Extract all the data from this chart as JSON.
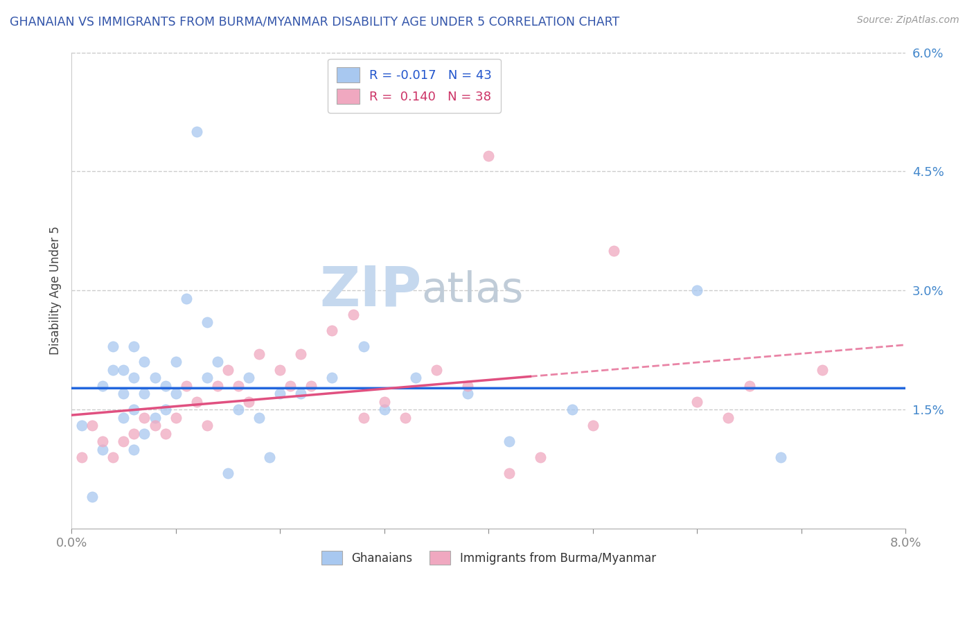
{
  "title": "GHANAIAN VS IMMIGRANTS FROM BURMA/MYANMAR DISABILITY AGE UNDER 5 CORRELATION CHART",
  "source_text": "Source: ZipAtlas.com",
  "ylabel": "Disability Age Under 5",
  "xlim": [
    0.0,
    0.08
  ],
  "ylim": [
    0.0,
    0.06
  ],
  "yticks": [
    0.015,
    0.03,
    0.045,
    0.06
  ],
  "ytick_labels": [
    "1.5%",
    "3.0%",
    "4.5%",
    "6.0%"
  ],
  "xticks": [
    0.0,
    0.01,
    0.02,
    0.03,
    0.04,
    0.05,
    0.06,
    0.07,
    0.08
  ],
  "xtick_labels": [
    "0.0%",
    "",
    "",
    "",
    "",
    "",
    "",
    "",
    "8.0%"
  ],
  "ghanaian_R": "-0.017",
  "ghanaian_N": "43",
  "burma_R": "0.140",
  "burma_N": "38",
  "ghanaian_color": "#a8c8f0",
  "burma_color": "#f0a8c0",
  "ghanaian_line_color": "#2266dd",
  "burma_line_color": "#e05080",
  "title_color": "#3355aa",
  "source_color": "#999999",
  "watermark_color_zip": "#c8d8ee",
  "watermark_color_atlas": "#c0cce0",
  "background_color": "#ffffff",
  "grid_color": "#cccccc",
  "ghanaian_x": [
    0.001,
    0.002,
    0.003,
    0.003,
    0.004,
    0.004,
    0.005,
    0.005,
    0.005,
    0.006,
    0.006,
    0.006,
    0.006,
    0.007,
    0.007,
    0.007,
    0.008,
    0.008,
    0.009,
    0.009,
    0.01,
    0.01,
    0.011,
    0.012,
    0.013,
    0.013,
    0.014,
    0.015,
    0.016,
    0.017,
    0.018,
    0.019,
    0.02,
    0.022,
    0.025,
    0.028,
    0.03,
    0.033,
    0.038,
    0.042,
    0.048,
    0.06,
    0.068
  ],
  "ghanaian_y": [
    0.013,
    0.004,
    0.01,
    0.018,
    0.02,
    0.023,
    0.014,
    0.017,
    0.02,
    0.01,
    0.015,
    0.019,
    0.023,
    0.012,
    0.017,
    0.021,
    0.014,
    0.019,
    0.015,
    0.018,
    0.017,
    0.021,
    0.029,
    0.05,
    0.026,
    0.019,
    0.021,
    0.007,
    0.015,
    0.019,
    0.014,
    0.009,
    0.017,
    0.017,
    0.019,
    0.023,
    0.015,
    0.019,
    0.017,
    0.011,
    0.015,
    0.03,
    0.009
  ],
  "burma_x": [
    0.001,
    0.002,
    0.003,
    0.004,
    0.005,
    0.006,
    0.007,
    0.008,
    0.009,
    0.01,
    0.011,
    0.012,
    0.013,
    0.014,
    0.015,
    0.016,
    0.017,
    0.018,
    0.02,
    0.021,
    0.022,
    0.023,
    0.025,
    0.027,
    0.028,
    0.03,
    0.032,
    0.035,
    0.038,
    0.04,
    0.042,
    0.045,
    0.05,
    0.052,
    0.06,
    0.063,
    0.065,
    0.072
  ],
  "burma_y": [
    0.009,
    0.013,
    0.011,
    0.009,
    0.011,
    0.012,
    0.014,
    0.013,
    0.012,
    0.014,
    0.018,
    0.016,
    0.013,
    0.018,
    0.02,
    0.018,
    0.016,
    0.022,
    0.02,
    0.018,
    0.022,
    0.018,
    0.025,
    0.027,
    0.014,
    0.016,
    0.014,
    0.02,
    0.018,
    0.047,
    0.007,
    0.009,
    0.013,
    0.035,
    0.016,
    0.014,
    0.018,
    0.02
  ]
}
